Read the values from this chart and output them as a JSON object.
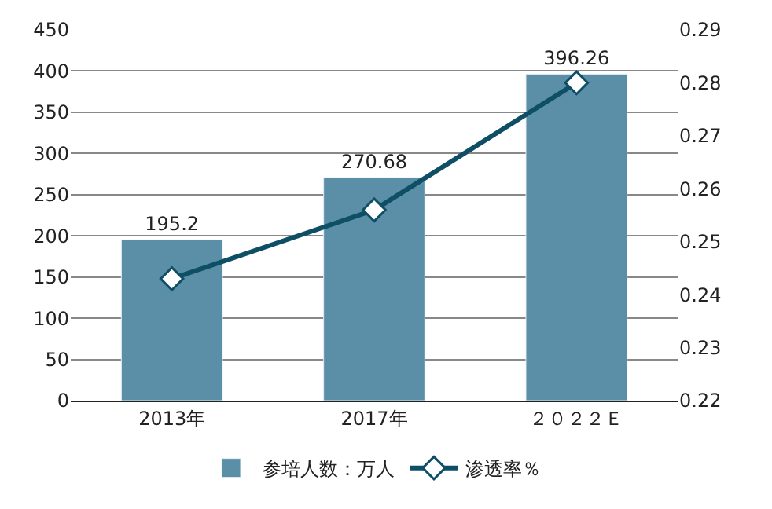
{
  "chart_data": {
    "type": "bar",
    "categories": [
      "2013年",
      "2017年",
      "２０２２Ｅ"
    ],
    "series": [
      {
        "name": "参培人数：万人",
        "color": "#5b8fa8",
        "values": [
          195.2,
          270.68,
          396.26
        ],
        "data_labels": true
      },
      {
        "name": "渗透率％",
        "type": "line",
        "axis": "y2",
        "color": "#0e4f66",
        "marker": "diamond",
        "values": [
          0.243,
          0.256,
          0.28
        ]
      }
    ],
    "ylim": [
      0,
      450
    ],
    "yticks": [
      0,
      50,
      100,
      150,
      200,
      250,
      300,
      350,
      400,
      450
    ],
    "y2lim": [
      0.22,
      0.29
    ],
    "y2ticks": [
      0.22,
      0.23,
      0.24,
      0.25,
      0.26,
      0.27,
      0.28,
      0.29
    ],
    "grid": "y",
    "legend": "bottom"
  }
}
